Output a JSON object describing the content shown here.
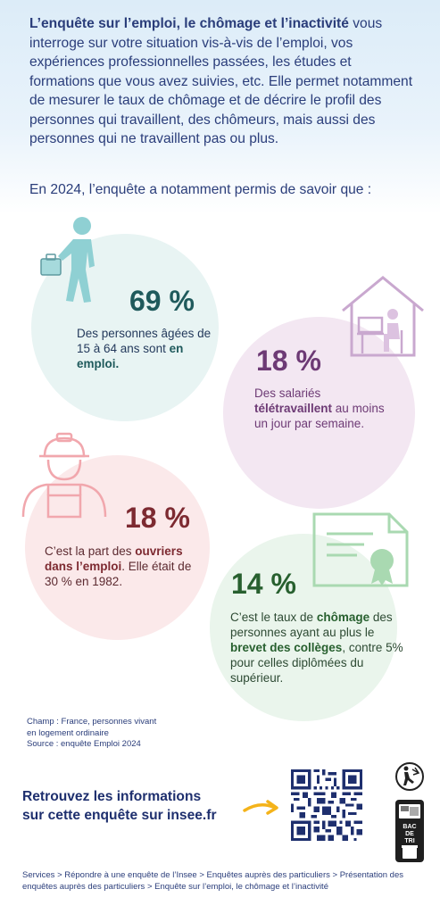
{
  "intro": {
    "title_bold": "L’enquête sur l’emploi, le chômage et l’inactivité",
    "body": " vous interroge sur votre situation vis-à-vis de l’emploi, vos expériences professionnelles passées, les études et formations que vous avez suivies, etc. Elle permet notamment de mesurer le taux de chômage et de décrire le profil des personnes qui travaillent, des chômeurs, mais aussi des personnes qui ne travaillent pas ou plus.",
    "year_line": "En 2024, l’enquête a notamment permis de savoir que :"
  },
  "stats": [
    {
      "value": "69 %",
      "text_before": "Des personnes âgées de 15 à 64 ans sont ",
      "text_bold": "en emploi.",
      "text_after": "",
      "icon": "worker-walking-icon",
      "color": "#1f5a5c"
    },
    {
      "value": "18 %",
      "text_before": "Des salariés ",
      "text_bold": "télétravaillent",
      "text_after": " au moins un jour par semaine.",
      "icon": "home-office-icon",
      "color": "#6d3a75"
    },
    {
      "value": "18 %",
      "text_before": "C’est la part des ",
      "text_bold": "ouvriers dans l’emploi",
      "text_after": ". Elle était de 30 % en 1982.",
      "icon": "construction-worker-icon",
      "color": "#7d2a31"
    },
    {
      "value": "14 %",
      "text_before": "C’est le taux de ",
      "text_bold": "chômage",
      "text_middle": " des personnes ayant au plus le ",
      "text_bold2": "brevet des collèges",
      "text_after": ", contre 5% pour celles diplômées du supérieur.",
      "icon": "diploma-icon",
      "color": "#28602f"
    }
  ],
  "source": {
    "line1": "Champ : France, personnes vivant",
    "line2": "en logement ordinaire",
    "line3": "Source : enquête Emploi 2024"
  },
  "cta": {
    "line1": "Retrouvez les informations",
    "line2": "sur cette enquête sur insee.fr"
  },
  "logos": {
    "triman": "triman-icon",
    "recycling": "bac-de-tri-icon",
    "bin_label": "BAC DE TRI"
  },
  "breadcrumb": "Services > Répondre à une enquête de l’Insee > Enquêtes auprès des particuliers > Présentation des enquêtes auprès des particuliers > Enquête sur l’emploi, le chômage et l’inactivité"
}
